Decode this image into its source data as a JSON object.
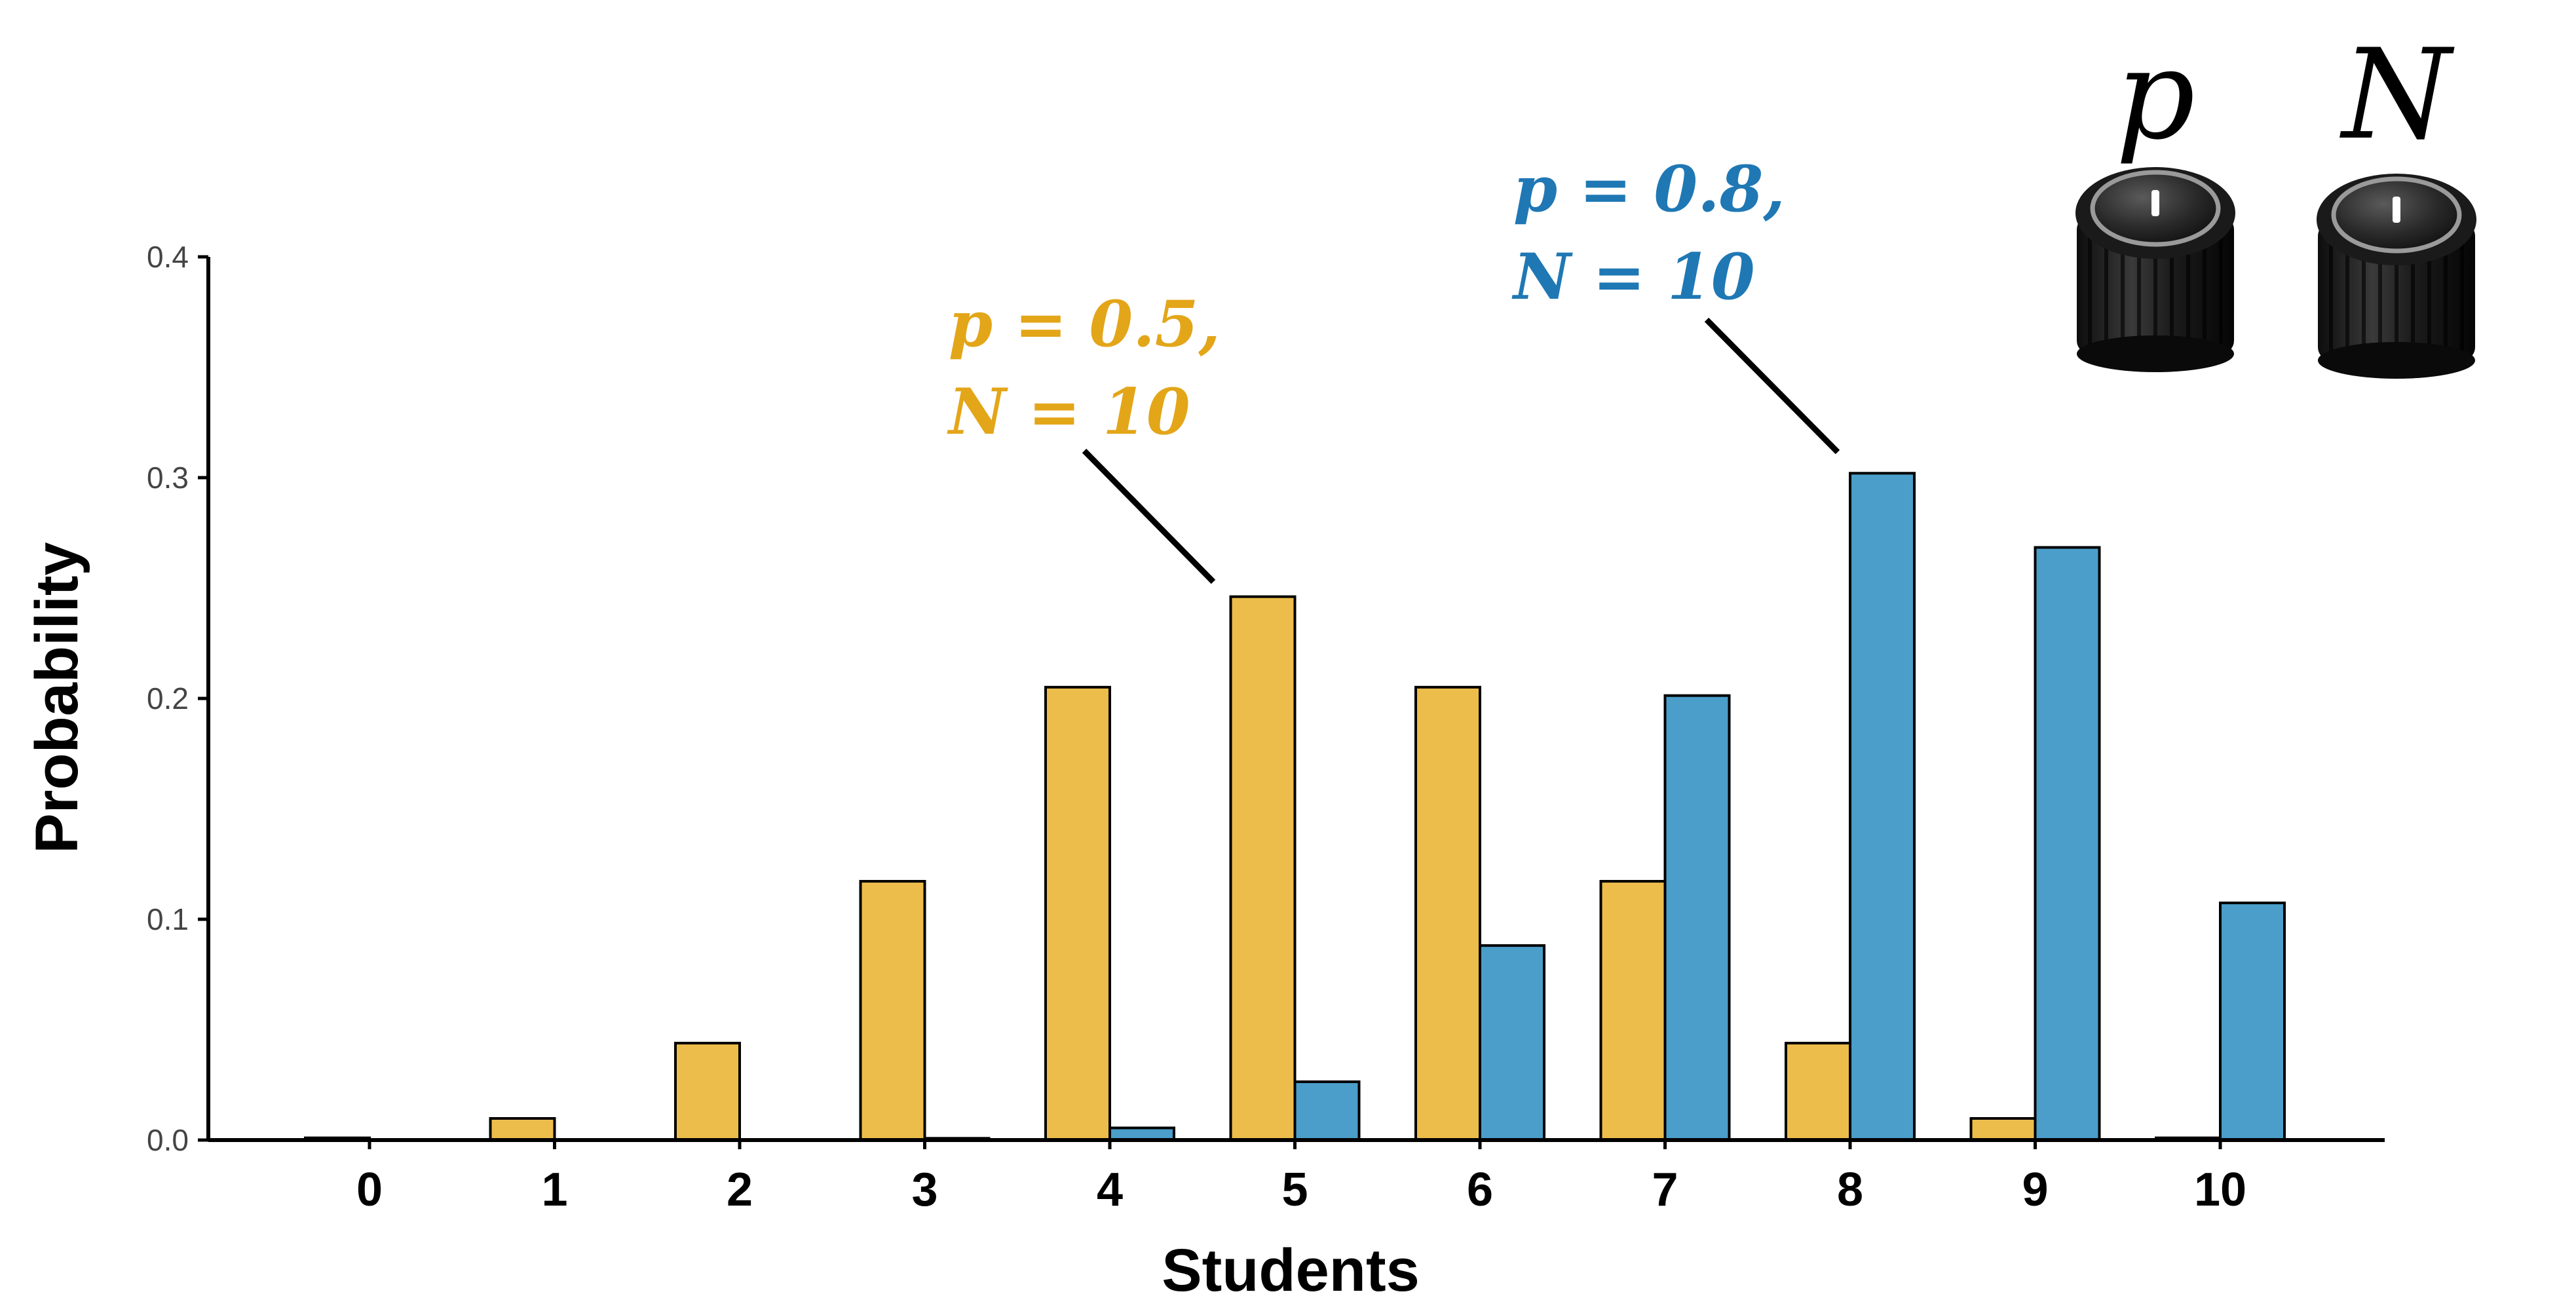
{
  "chart_data": {
    "type": "bar",
    "xlabel": "Students",
    "ylabel": "Probability",
    "ylim": [
      0,
      0.4
    ],
    "yticks": [
      0.0,
      0.1,
      0.2,
      0.3,
      0.4
    ],
    "ytick_labels": [
      "0.0",
      "0.1",
      "0.2",
      "0.3",
      "0.4"
    ],
    "categories": [
      "0",
      "1",
      "2",
      "3",
      "4",
      "5",
      "6",
      "7",
      "8",
      "9",
      "10"
    ],
    "grid": false,
    "legend": "none",
    "series": [
      {
        "color": "#EDBD4B",
        "values": [
          0.001,
          0.0098,
          0.0439,
          0.1172,
          0.2051,
          0.2461,
          0.2051,
          0.1172,
          0.0439,
          0.0098,
          0.001
        ]
      },
      {
        "color": "#4A9EC9",
        "values": [
          0.0,
          0.0,
          0.0001,
          0.0008,
          0.0055,
          0.0264,
          0.0881,
          0.2013,
          0.302,
          0.2684,
          0.1074
        ]
      }
    ],
    "annotations": [
      {
        "line1": "p = 0.5,",
        "line2": "N = 10",
        "color": "#E3A619",
        "points_to": "5"
      },
      {
        "line1": "p = 0.8,",
        "line2": "N = 10",
        "color": "#1F78B4",
        "points_to": "8"
      }
    ]
  },
  "knobs": [
    {
      "label": "p",
      "icon": "knob-icon"
    },
    {
      "label": "N",
      "icon": "knob-icon"
    }
  ]
}
